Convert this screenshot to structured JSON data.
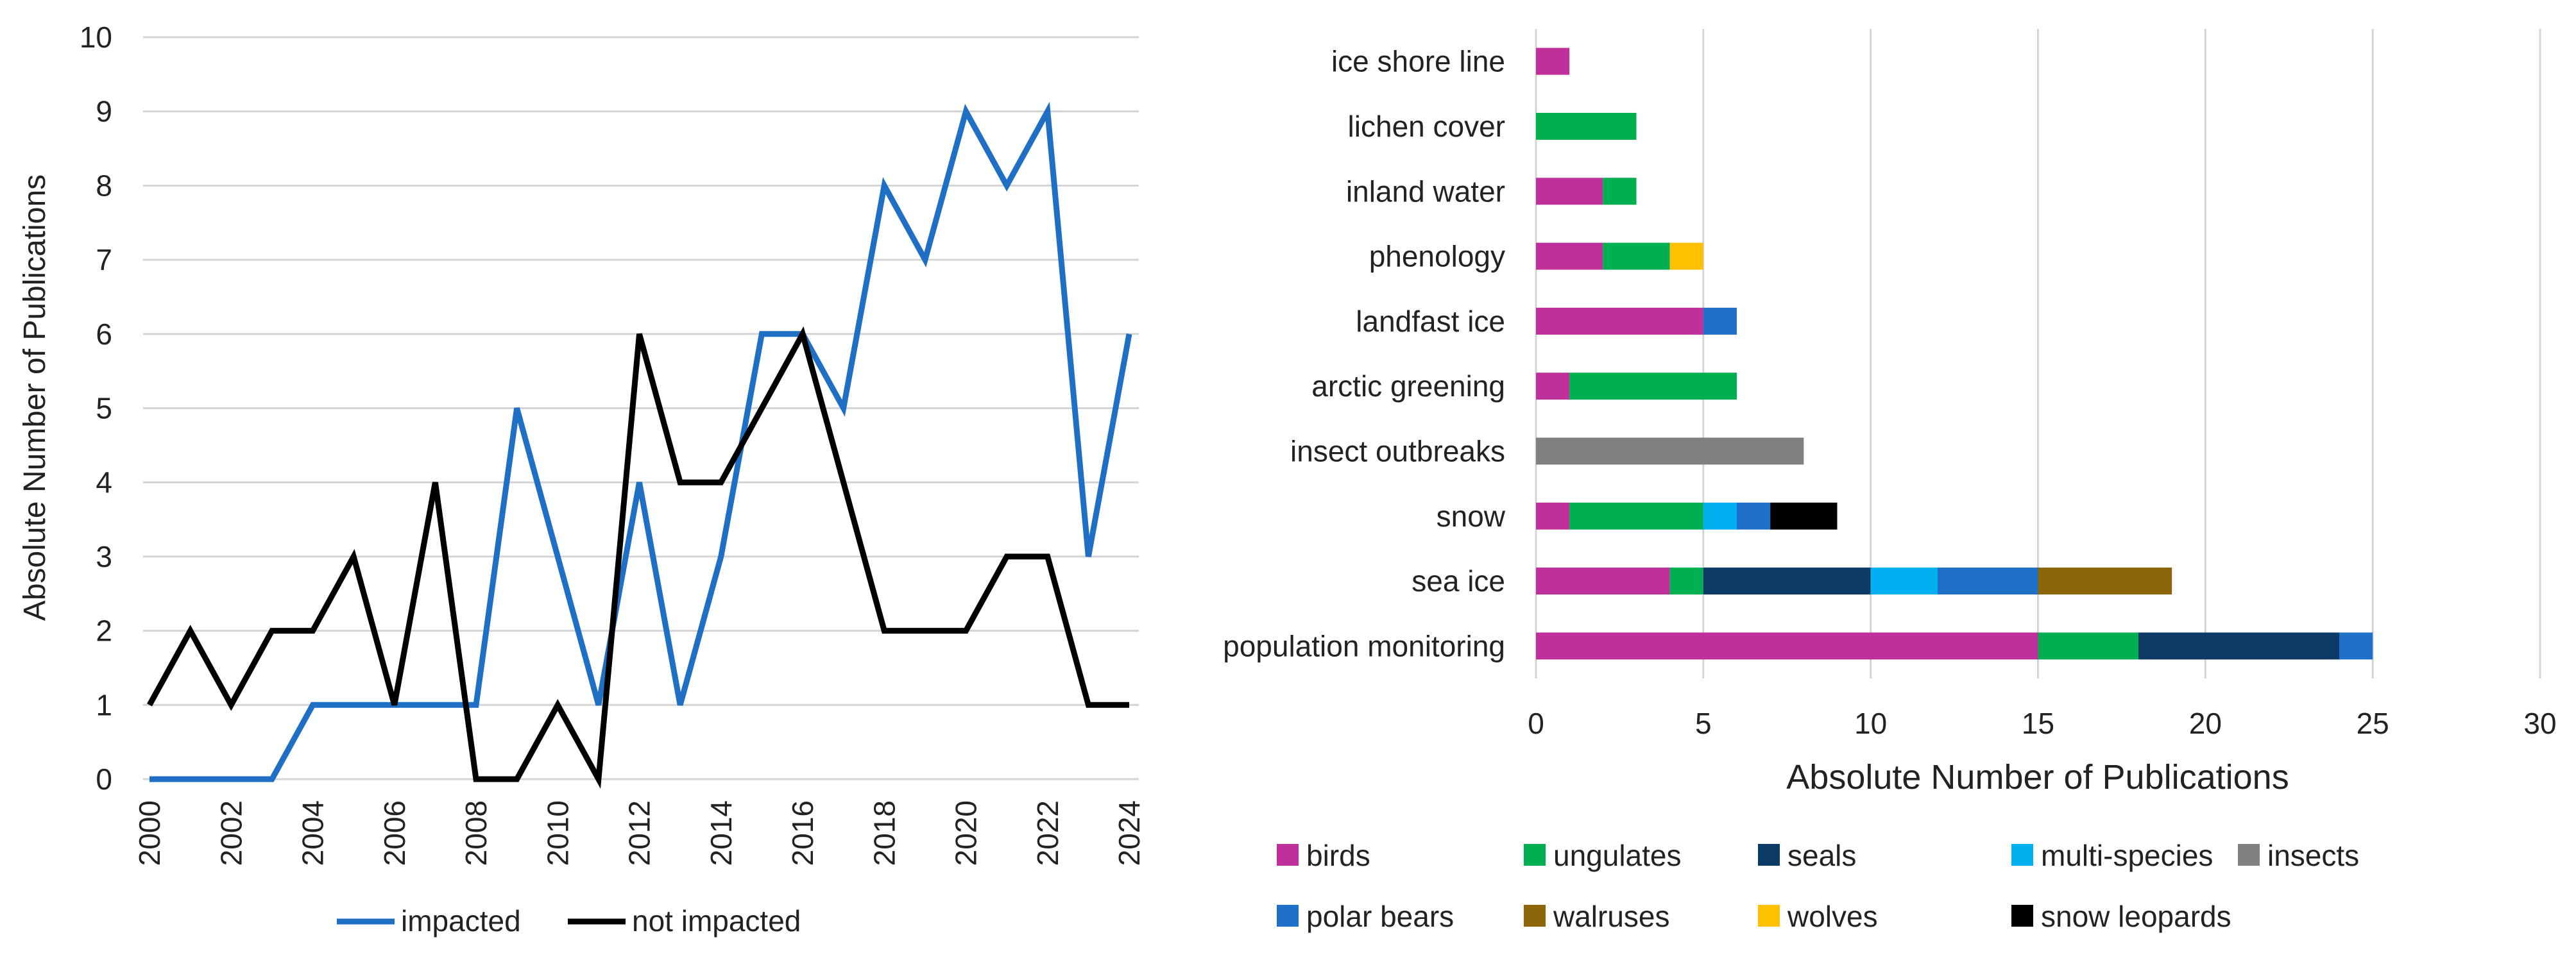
{
  "chart_data": [
    {
      "type": "line",
      "title": "",
      "xlabel": "",
      "ylabel": "Absolute Number of Publications",
      "ylim": [
        0,
        10
      ],
      "y_ticks": [
        "0",
        "1",
        "2",
        "3",
        "4",
        "5",
        "6",
        "7",
        "8",
        "9",
        "10"
      ],
      "x": [
        2000,
        2001,
        2002,
        2003,
        2004,
        2005,
        2006,
        2007,
        2008,
        2009,
        2010,
        2011,
        2012,
        2013,
        2014,
        2015,
        2016,
        2017,
        2018,
        2019,
        2020,
        2021,
        2022,
        2023,
        2024
      ],
      "x_ticks": [
        "2000",
        "2002",
        "2004",
        "2006",
        "2008",
        "2010",
        "2012",
        "2014",
        "2016",
        "2018",
        "2020",
        "2022",
        "2024"
      ],
      "series": [
        {
          "name": "impacted",
          "color": "#1f6fc5",
          "values": [
            0,
            0,
            0,
            0,
            1,
            1,
            1,
            1,
            1,
            5,
            3,
            1,
            4,
            1,
            3,
            6,
            6,
            5,
            8,
            7,
            9,
            8,
            9,
            3,
            6
          ]
        },
        {
          "name": "not impacted",
          "color": "#000000",
          "values": [
            1,
            2,
            1,
            2,
            2,
            3,
            1,
            4,
            0,
            0,
            1,
            0,
            6,
            4,
            4,
            5,
            6,
            4,
            2,
            2,
            2,
            3,
            3,
            1,
            1
          ]
        }
      ],
      "legend": [
        "impacted",
        "not impacted"
      ],
      "legend_position": "bottom"
    },
    {
      "type": "bar",
      "orientation": "horizontal",
      "stacked": true,
      "title": "",
      "xlabel": "Absolute Number of Publications",
      "ylabel": "",
      "xlim": [
        0,
        30
      ],
      "x_ticks": [
        "0",
        "5",
        "10",
        "15",
        "20",
        "25",
        "30"
      ],
      "categories": [
        "ice shore line",
        "lichen cover",
        "inland water",
        "phenology",
        "landfast ice",
        "arctic greening",
        "insect outbreaks",
        "snow",
        "sea ice",
        "population monitoring"
      ],
      "series": [
        {
          "name": "birds",
          "color": "#c0309a",
          "values": [
            1,
            0,
            2,
            2,
            5,
            1,
            0,
            1,
            4,
            15
          ]
        },
        {
          "name": "ungulates",
          "color": "#00b050",
          "values": [
            0,
            3,
            1,
            2,
            0,
            5,
            0,
            4,
            1,
            3
          ]
        },
        {
          "name": "seals",
          "color": "#0e3a66",
          "values": [
            0,
            0,
            0,
            0,
            0,
            0,
            0,
            0,
            5,
            6
          ]
        },
        {
          "name": "multi-species",
          "color": "#00b0f0",
          "values": [
            0,
            0,
            0,
            0,
            0,
            0,
            0,
            1,
            2,
            0
          ]
        },
        {
          "name": "insects",
          "color": "#808080",
          "values": [
            0,
            0,
            0,
            0,
            0,
            0,
            8,
            0,
            0,
            0
          ]
        },
        {
          "name": "polar bears",
          "color": "#1f70c8",
          "values": [
            0,
            0,
            0,
            0,
            1,
            0,
            0,
            1,
            3,
            1
          ]
        },
        {
          "name": "walruses",
          "color": "#8b6508",
          "values": [
            0,
            0,
            0,
            0,
            0,
            0,
            0,
            0,
            4,
            0
          ]
        },
        {
          "name": "wolves",
          "color": "#ffc000",
          "values": [
            0,
            0,
            0,
            1,
            0,
            0,
            0,
            0,
            0,
            0
          ]
        },
        {
          "name": "snow leopards",
          "color": "#000000",
          "values": [
            0,
            0,
            0,
            0,
            0,
            0,
            0,
            2,
            0,
            0
          ]
        }
      ],
      "legend": [
        "birds",
        "ungulates",
        "seals",
        "multi-species",
        "insects",
        "polar bears",
        "walruses",
        "wolves",
        "snow leopards"
      ],
      "legend_position": "bottom"
    }
  ]
}
